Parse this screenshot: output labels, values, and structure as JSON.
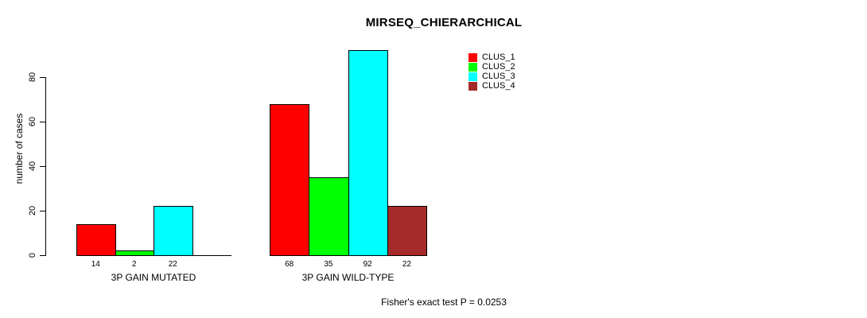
{
  "chart_data": {
    "type": "bar",
    "title": "MIRSEQ_CHIERARCHICAL",
    "ylabel": "number of cases",
    "xlabel": "",
    "ylim": [
      0,
      92
    ],
    "yticks": [
      0,
      20,
      40,
      60,
      80
    ],
    "grid": false,
    "legend_position": "top-right",
    "categories": [
      "3P GAIN MUTATED",
      "3P GAIN WILD-TYPE"
    ],
    "series": [
      {
        "name": "CLUS_1",
        "color": "#ff0000",
        "values": [
          14,
          68
        ]
      },
      {
        "name": "CLUS_2",
        "color": "#00ff00",
        "values": [
          2,
          35
        ]
      },
      {
        "name": "CLUS_3",
        "color": "#00ffff",
        "values": [
          22,
          92
        ]
      },
      {
        "name": "CLUS_4",
        "color": "#a52a2a",
        "values": [
          0,
          22
        ]
      }
    ],
    "bar_value_labels": [
      [
        "14",
        "2",
        "22",
        ""
      ],
      [
        "68",
        "35",
        "92",
        "22"
      ]
    ],
    "annotation": "Fisher's exact test P = 0.0253",
    "axis_color": "#000000",
    "background_color": "#ffffff"
  }
}
